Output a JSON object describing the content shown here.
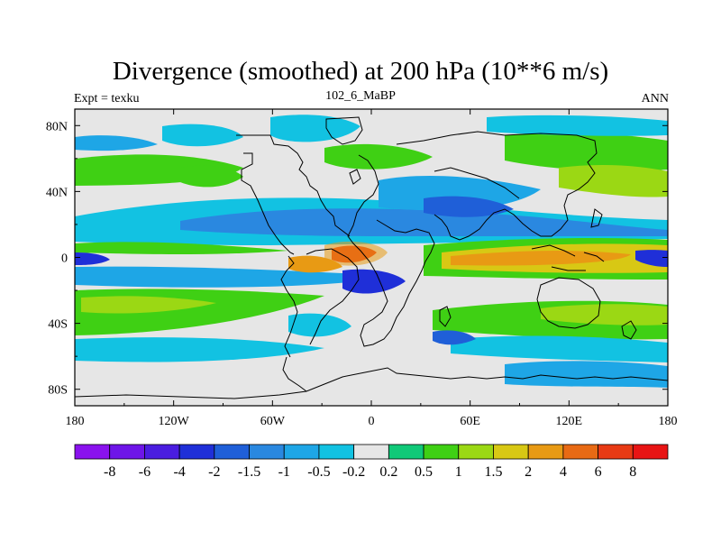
{
  "chart_data": {
    "type": "heatmap",
    "title": "Divergence (smoothed) at 200 hPa (10**6 m/s)",
    "subtitle_left": "Expt = texku",
    "subtitle_center": "102_6_MaBP",
    "subtitle_right": "ANN",
    "x_ticks": [
      "180",
      "120W",
      "60W",
      "0",
      "60E",
      "120E",
      "180"
    ],
    "x_tick_values": [
      -180,
      -120,
      -60,
      0,
      60,
      120,
      180
    ],
    "y_ticks": [
      "80N",
      "40N",
      "0",
      "40S",
      "80S"
    ],
    "y_tick_values": [
      80,
      40,
      0,
      -40,
      -80
    ],
    "xlim": [
      -180,
      180
    ],
    "ylim": [
      -90,
      90
    ],
    "colorbar": {
      "labels": [
        "-8",
        "-6",
        "-4",
        "-2",
        "-1.5",
        "-1",
        "-0.5",
        "-0.2",
        "0.2",
        "0.5",
        "1",
        "1.5",
        "2",
        "4",
        "6",
        "8"
      ],
      "colors": [
        "#8a12ee",
        "#6e15e8",
        "#4a1de0",
        "#1f2fd8",
        "#1f5fd8",
        "#2a88e0",
        "#1ea6e6",
        "#12c2e2",
        "#e6e6e6",
        "#10c978",
        "#3fd014",
        "#9bd814",
        "#d8c814",
        "#e89a14",
        "#e86a14",
        "#e83a14",
        "#e81414"
      ]
    }
  }
}
